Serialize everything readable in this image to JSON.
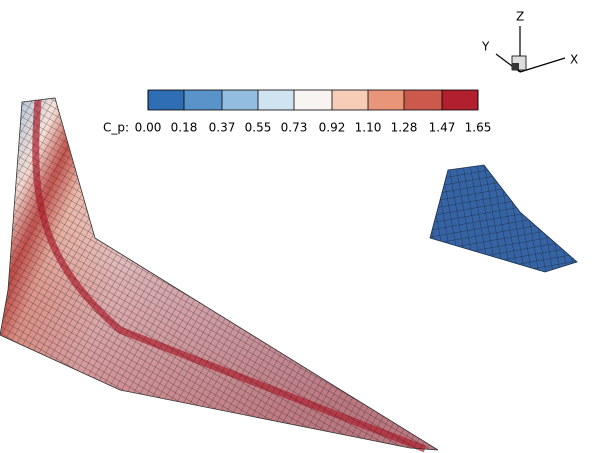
{
  "colorbar": {
    "label": "C_p:",
    "ticks": [
      {
        "value": 0,
        "label": "0.00"
      },
      {
        "value": 0.18,
        "label": "0.18"
      },
      {
        "value": 0.37,
        "label": "0.37"
      },
      {
        "value": 0.55,
        "label": "0.55"
      },
      {
        "value": 0.73,
        "label": "0.73"
      },
      {
        "value": 0.92,
        "label": "0.92"
      },
      {
        "value": 1.1,
        "label": "1.10"
      },
      {
        "value": 1.28,
        "label": "1.28"
      },
      {
        "value": 1.47,
        "label": "1.47"
      },
      {
        "value": 1.65,
        "label": "1.65"
      }
    ],
    "colors": [
      "#2f6db5",
      "#5a93c9",
      "#93bde0",
      "#cfe3f1",
      "#f7f4f2",
      "#f6cdb6",
      "#e8957a",
      "#cc5a4c",
      "#b2202f"
    ]
  },
  "axes": {
    "x": "X",
    "y": "Y",
    "z": "Z"
  }
}
